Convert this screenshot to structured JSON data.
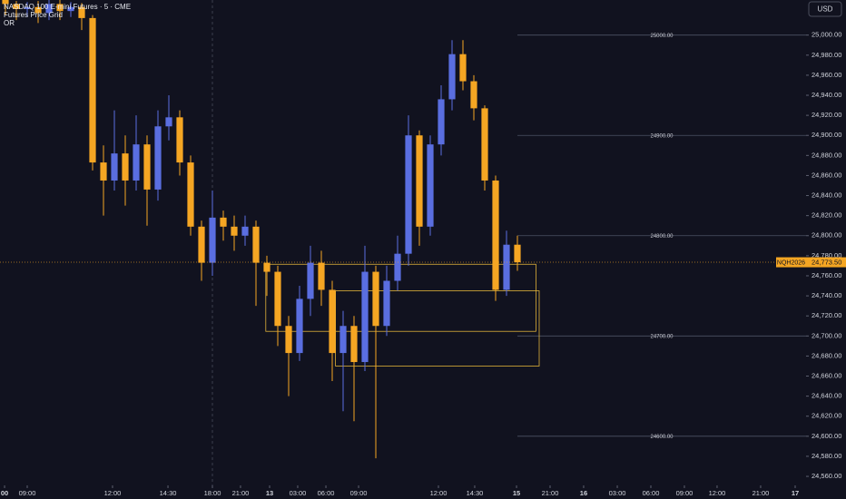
{
  "chart_data": {
    "type": "candlestick",
    "title": "NASDAQ 100 E-mini Futures · 5 · CME",
    "indicators": [
      "Futures Price Grid",
      "OR"
    ],
    "currency": "USD",
    "symbol": "NQH2026",
    "last": {
      "value": 24773.5,
      "label": "24,773.50"
    },
    "up_color": "#5a6ee0",
    "down_color": "#f5a623",
    "open": [
      25035,
      25031,
      25026,
      25028,
      25022,
      25031,
      25024,
      25028,
      25017,
      24873,
      24855,
      24882,
      24855,
      24891,
      24846,
      24909,
      24918,
      24873,
      24809,
      24773,
      24818,
      24809,
      24800,
      24809,
      24773,
      24764,
      24710,
      24683,
      24737,
      24773,
      24746,
      24683,
      24710,
      24674,
      24764,
      24710,
      24755,
      24782,
      24900,
      24809,
      24891,
      24936,
      24981,
      24954,
      24927,
      24855,
      24746,
      24791
    ],
    "high": [
      25035,
      25034,
      25033,
      25034,
      25035,
      25035,
      25033,
      25032,
      25020,
      24890,
      24925,
      24900,
      24920,
      24900,
      24925,
      24940,
      24925,
      24880,
      24815,
      24845,
      24825,
      24820,
      24820,
      24815,
      24780,
      24770,
      24720,
      24750,
      24790,
      24785,
      24755,
      24725,
      24720,
      24790,
      24770,
      24770,
      24800,
      24920,
      24905,
      24900,
      24950,
      24995,
      24995,
      24960,
      24930,
      24860,
      24805,
      24800
    ],
    "low": [
      25020,
      25015,
      25018,
      25012,
      25015,
      25015,
      25018,
      25005,
      24865,
      24820,
      24845,
      24830,
      24845,
      24810,
      24835,
      24895,
      24860,
      24800,
      24755,
      24760,
      24795,
      24785,
      24790,
      24730,
      24740,
      24690,
      24640,
      24675,
      24720,
      24730,
      24655,
      24625,
      24615,
      24665,
      24578,
      24700,
      24745,
      24770,
      24790,
      24800,
      24880,
      24925,
      24945,
      24915,
      24845,
      24735,
      24740,
      24765
    ],
    "close": [
      25031,
      25026,
      25028,
      25022,
      25031,
      25024,
      25028,
      25017,
      24873,
      24855,
      24882,
      24855,
      24891,
      24846,
      24909,
      24918,
      24873,
      24809,
      24773,
      24818,
      24809,
      24800,
      24809,
      24773,
      24764,
      24710,
      24683,
      24737,
      24773,
      24746,
      24683,
      24710,
      24674,
      24764,
      24710,
      24755,
      24782,
      24900,
      24809,
      24891,
      24936,
      24981,
      24954,
      24927,
      24855,
      24746,
      24791,
      24773.5
    ],
    "xlim": [
      0,
      74
    ],
    "ylim": [
      24551,
      25035
    ],
    "xticks": [
      {
        "value": 0.42,
        "label": "00"
      },
      {
        "value": 2.5,
        "label": "09:00"
      },
      {
        "value": 10.33,
        "label": "12:00"
      },
      {
        "value": 15.42,
        "label": "14:30"
      },
      {
        "value": 19.5,
        "label": "18:00"
      },
      {
        "value": 22.08,
        "label": "21:00"
      },
      {
        "value": 24.75,
        "label": "13"
      },
      {
        "value": 27.33,
        "label": "03:00"
      },
      {
        "value": 29.92,
        "label": "06:00"
      },
      {
        "value": 32.92,
        "label": "09:00"
      },
      {
        "value": 40.25,
        "label": "12:00"
      },
      {
        "value": 43.58,
        "label": "14:30"
      },
      {
        "value": 47.42,
        "label": "15"
      },
      {
        "value": 50.5,
        "label": "21:00"
      },
      {
        "value": 53.58,
        "label": "16"
      },
      {
        "value": 56.67,
        "label": "03:00"
      },
      {
        "value": 59.75,
        "label": "06:00"
      },
      {
        "value": 62.83,
        "label": "09:00"
      },
      {
        "value": 65.83,
        "label": "12:00"
      },
      {
        "value": 69.83,
        "label": "21:00"
      },
      {
        "value": 73,
        "label": "17"
      }
    ],
    "yticks": [
      {
        "value": 24560,
        "label": "24,560.00"
      },
      {
        "value": 24580,
        "label": "24,580.00"
      },
      {
        "value": 24600,
        "label": "24,600.00"
      },
      {
        "value": 24620,
        "label": "24,620.00"
      },
      {
        "value": 24640,
        "label": "24,640.00"
      },
      {
        "value": 24660,
        "label": "24,660.00"
      },
      {
        "value": 24680,
        "label": "24,680.00"
      },
      {
        "value": 24700,
        "label": "24,700.00"
      },
      {
        "value": 24720,
        "label": "24,720.00"
      },
      {
        "value": 24740,
        "label": "24,740.00"
      },
      {
        "value": 24760,
        "label": "24,760.00"
      },
      {
        "value": 24780,
        "label": "24,780.00"
      },
      {
        "value": 24800,
        "label": "24,800.00"
      },
      {
        "value": 24820,
        "label": "24,820.00"
      },
      {
        "value": 24840,
        "label": "24,840.00"
      },
      {
        "value": 24860,
        "label": "24,860.00"
      },
      {
        "value": 24880,
        "label": "24,880.00"
      },
      {
        "value": 24900,
        "label": "24,900.00"
      },
      {
        "value": 24920,
        "label": "24,920.00"
      },
      {
        "value": 24940,
        "label": "24,940.00"
      },
      {
        "value": 24960,
        "label": "24,960.00"
      },
      {
        "value": 24980,
        "label": "24,980.00"
      },
      {
        "value": 25000,
        "label": "25,000.00"
      }
    ],
    "price_grid": [
      {
        "value": 25000,
        "label": "25000.00"
      },
      {
        "value": 24900,
        "label": "24900.00"
      },
      {
        "value": 24800,
        "label": "24800.00"
      },
      {
        "value": 24700,
        "label": "24700.00"
      },
      {
        "value": 24600,
        "label": "24600.00"
      }
    ],
    "price_grid_start": 47.5,
    "boxes": [
      {
        "start": 24.4,
        "end": 49.2,
        "top": 24771.5,
        "bottom": 24704.6
      },
      {
        "start": 30.8,
        "end": 49.5,
        "top": 24745,
        "bottom": 24670
      }
    ],
    "box_color": "#e0b23a",
    "session_breaks": [
      19.5
    ]
  }
}
